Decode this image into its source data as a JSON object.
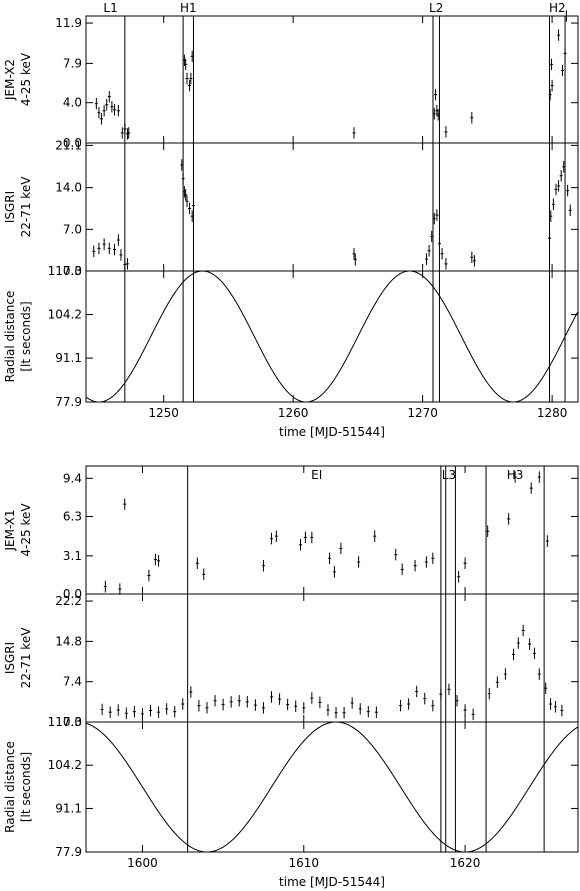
{
  "chart_data": [
    {
      "type": "scatter",
      "xlabel": "time [MJD-51544]",
      "xlim": [
        1244,
        1282
      ],
      "xticks": [
        "1250",
        "1260",
        "1270",
        "1280"
      ],
      "event_lines": [
        1247.0,
        1251.5,
        1252.3,
        1270.8,
        1271.3,
        1279.8,
        1281.0
      ],
      "event_labels": [
        {
          "text": "L1",
          "x": 1245.9
        },
        {
          "text": "H1",
          "x": 1251.9
        },
        {
          "text": "L2",
          "x": 1271.05
        },
        {
          "text": "H2",
          "x": 1280.4
        }
      ],
      "panels": [
        {
          "name": "jemx2",
          "ylabel": "JEM-X2",
          "ylabel2": "4-25 keV",
          "ylim": [
            0,
            12.6
          ],
          "yticks": [
            "0.0",
            "4.0",
            "7.9",
            "11.9"
          ],
          "series": [
            {
              "x": [
                1244.8,
                1245.0,
                1245.2,
                1245.4,
                1245.6,
                1245.8,
                1246.0,
                1246.2,
                1246.5,
                1246.8,
                1247.0,
                1247.2,
                1247.3,
                1251.6,
                1251.7,
                1251.8,
                1252.0,
                1252.1,
                1252.2,
                1264.7,
                1270.9,
                1271.0,
                1271.1,
                1271.2,
                1271.8,
                1273.8,
                1279.85,
                1279.95,
                1280.0,
                1280.5,
                1280.8,
                1281.0,
                1281.1
              ],
              "y": [
                3.9,
                3.0,
                2.4,
                3.2,
                3.8,
                4.6,
                3.6,
                3.3,
                3.2,
                1.0,
                1.4,
                0.9,
                1.0,
                8.2,
                7.8,
                6.4,
                5.7,
                6.4,
                8.6,
                1.0,
                2.9,
                4.8,
                3.2,
                2.8,
                1.1,
                2.5,
                4.8,
                7.8,
                5.7,
                10.7,
                7.2,
                8.9,
                12.6
              ]
            }
          ]
        },
        {
          "name": "isgri",
          "ylabel": "ISGRI",
          "ylabel2": "22-71 keV",
          "ylim": [
            0,
            21.5
          ],
          "yticks": [
            "0.0",
            "7.0",
            "14.0",
            "21.1"
          ],
          "series": [
            {
              "x": [
                1244.6,
                1245.0,
                1245.4,
                1245.8,
                1246.2,
                1246.5,
                1246.7,
                1247.0,
                1247.2,
                1251.4,
                1251.5,
                1251.6,
                1251.7,
                1251.8,
                1252.0,
                1252.2,
                1252.3,
                1264.7,
                1264.8,
                1270.3,
                1270.5,
                1270.7,
                1270.9,
                1271.1,
                1271.3,
                1271.5,
                1271.8,
                1273.8,
                1274.0,
                1279.8,
                1279.9,
                1280.1,
                1280.3,
                1280.5,
                1280.7,
                1280.9,
                1281.2,
                1281.4
              ],
              "y": [
                3.3,
                3.8,
                4.5,
                3.8,
                3.6,
                5.2,
                2.7,
                1.1,
                1.2,
                17.8,
                15.5,
                13.3,
                12.8,
                11.7,
                10.5,
                9.2,
                11.0,
                2.9,
                1.9,
                2.0,
                3.4,
                5.8,
                8.8,
                9.4,
                4.6,
                2.9,
                1.2,
                2.3,
                1.7,
                5.5,
                9.2,
                11.2,
                13.7,
                14.3,
                16.0,
                17.5,
                13.5,
                10.2
              ]
            }
          ]
        },
        {
          "name": "radial",
          "type": "line",
          "ylabel": "Radial distance",
          "ylabel2": "[lt seconds]",
          "ylim": [
            77.9,
            117.3
          ],
          "yticks": [
            "77.9",
            "91.1",
            "104.2",
            "117.3"
          ],
          "orbit": {
            "min": 77.9,
            "max": 117.3,
            "period": 16.0,
            "phase_min": 1245.0
          }
        }
      ]
    },
    {
      "type": "scatter",
      "xlabel": "time [MJD-51544]",
      "xlim": [
        1596.5,
        1627
      ],
      "xticks": [
        "1600",
        "1610",
        "1620"
      ],
      "event_lines": [
        1602.8,
        1618.5,
        1618.8,
        1619.4,
        1621.3,
        1624.9
      ],
      "event_labels": [
        {
          "text": "EI",
          "x": 1610.8
        },
        {
          "text": "L3",
          "x": 1619.0
        },
        {
          "text": "H3",
          "x": 1623.1
        }
      ],
      "panels": [
        {
          "name": "jemx1",
          "ylabel": "JEM-X1",
          "ylabel2": "4-25 keV",
          "ylim": [
            0,
            10.4
          ],
          "yticks": [
            "0.0",
            "3.1",
            "6.3",
            "9.4"
          ],
          "series": [
            {
              "x": [
                1597.7,
                1598.6,
                1598.9,
                1600.4,
                1600.8,
                1601.0,
                1603.4,
                1603.8,
                1607.5,
                1608.0,
                1608.3,
                1609.8,
                1610.1,
                1610.5,
                1611.6,
                1611.9,
                1612.3,
                1613.4,
                1614.4,
                1615.7,
                1616.1,
                1616.9,
                1617.6,
                1618.0,
                1619.6,
                1620.0,
                1621.4,
                1622.7,
                1623.1,
                1624.1,
                1624.6,
                1625.1
              ],
              "y": [
                0.6,
                0.4,
                7.3,
                1.5,
                2.8,
                2.7,
                2.5,
                1.6,
                2.3,
                4.5,
                4.7,
                4.0,
                4.6,
                4.6,
                2.9,
                1.8,
                3.7,
                2.6,
                4.7,
                3.2,
                2.0,
                2.3,
                2.6,
                2.9,
                1.4,
                2.5,
                5.1,
                6.1,
                9.5,
                8.6,
                9.5,
                4.3
              ]
            }
          ]
        },
        {
          "name": "isgri",
          "ylabel": "ISGRI",
          "ylabel2": "22-71 keV",
          "ylim": [
            0,
            23.5
          ],
          "yticks": [
            "0.0",
            "7.4",
            "14.8",
            "22.2"
          ],
          "series": [
            {
              "x": [
                1597.5,
                1598.0,
                1598.5,
                1599.0,
                1599.5,
                1600.0,
                1600.5,
                1601.0,
                1601.5,
                1602.0,
                1602.5,
                1603.0,
                1603.5,
                1604.0,
                1604.5,
                1605.0,
                1605.5,
                1606.0,
                1606.5,
                1607.0,
                1607.5,
                1608.0,
                1608.5,
                1609.0,
                1609.5,
                1610.0,
                1610.5,
                1611.0,
                1611.5,
                1612.0,
                1612.5,
                1613.0,
                1613.5,
                1614.0,
                1614.5,
                1616.0,
                1616.5,
                1617.0,
                1617.5,
                1618.0,
                1618.5,
                1619.0,
                1619.5,
                1620.0,
                1620.5,
                1621.5,
                1622.0,
                1622.5,
                1623.0,
                1623.3,
                1623.6,
                1624.0,
                1624.3,
                1624.6,
                1625.0,
                1625.3,
                1625.6,
                1626.0
              ],
              "y": [
                2.3,
                1.8,
                2.2,
                1.6,
                1.9,
                1.5,
                2.1,
                1.8,
                2.4,
                1.9,
                3.3,
                5.5,
                3.0,
                2.6,
                3.9,
                3.2,
                3.7,
                3.9,
                3.7,
                3.1,
                2.6,
                4.6,
                4.2,
                3.2,
                2.9,
                2.6,
                4.4,
                3.6,
                2.2,
                1.7,
                1.7,
                3.5,
                2.4,
                1.9,
                1.8,
                3.0,
                3.3,
                5.6,
                4.3,
                3.0,
                5.1,
                6.0,
                3.9,
                2.2,
                1.4,
                5.2,
                7.3,
                8.8,
                12.4,
                14.5,
                16.8,
                14.3,
                12.6,
                8.8,
                6.2,
                3.3,
                2.8,
                2.1
              ]
            }
          ]
        },
        {
          "name": "radial",
          "type": "line",
          "ylabel": "Radial distance",
          "ylabel2": "[lt seconds]",
          "ylim": [
            77.9,
            117.3
          ],
          "yticks": [
            "77.9",
            "91.1",
            "104.2",
            "117.3"
          ],
          "orbit": {
            "min": 77.9,
            "max": 117.3,
            "period": 16.0,
            "phase_min": 1604.0
          }
        }
      ]
    }
  ]
}
